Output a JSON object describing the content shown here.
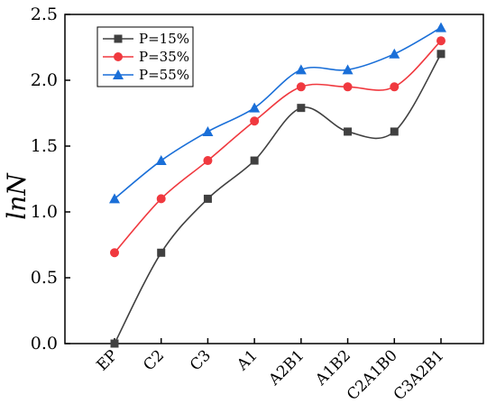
{
  "chart_data": {
    "type": "line",
    "categories": [
      "EP",
      "C2",
      "C3",
      "A1",
      "A2B1",
      "A1B2",
      "C2A1B0",
      "C3A2B1"
    ],
    "ylabel": "lnN",
    "ylim": [
      0,
      2.5
    ],
    "yticks": [
      "0.0",
      "0.5",
      "1.0",
      "1.5",
      "2.0",
      "2.5"
    ],
    "grid": false,
    "legend_position": "top-left",
    "series": [
      {
        "name": "P=15%",
        "color": "#404040",
        "marker": "square",
        "values": [
          0.0,
          0.69,
          1.1,
          1.39,
          1.79,
          1.61,
          1.61,
          2.2
        ]
      },
      {
        "name": "P=35%",
        "color": "#f0393f",
        "marker": "circle",
        "values": [
          0.69,
          1.1,
          1.39,
          1.69,
          1.95,
          1.95,
          1.95,
          2.3
        ]
      },
      {
        "name": "P=55%",
        "color": "#1a6fd8",
        "marker": "triangle",
        "values": [
          1.1,
          1.39,
          1.61,
          1.79,
          2.08,
          2.08,
          2.2,
          2.4
        ]
      }
    ]
  }
}
